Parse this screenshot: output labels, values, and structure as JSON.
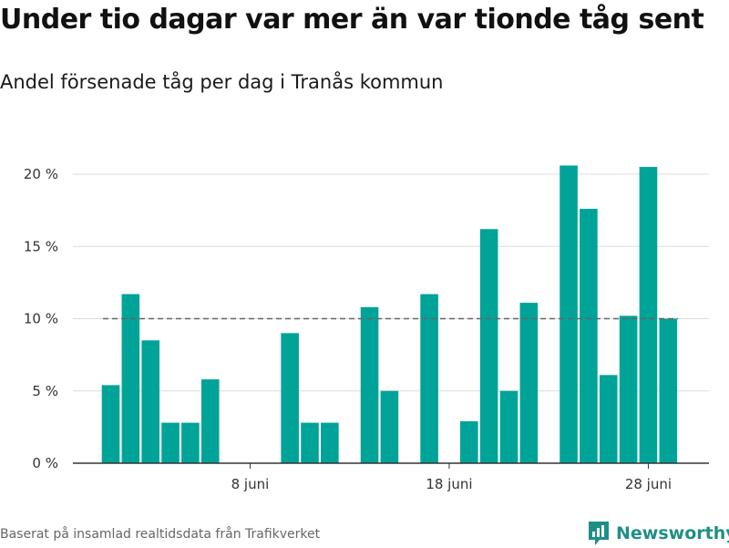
{
  "title": "Under tio dagar var mer än var tionde tåg sent",
  "subtitle": "Andel försenade tåg per dag i Tranås kommun",
  "source": "Baserat på insamlad realtidsdata från Trafikverket",
  "brand": {
    "name": "Newsworthy",
    "icon": "newsworthy-logo-icon"
  },
  "colors": {
    "bar": "#00a398",
    "grid": "#dcdcdc",
    "reference_line": "#666666",
    "brand": "#1f8f85"
  },
  "chart_data": {
    "type": "bar",
    "title": "Under tio dagar var mer än var tionde tåg sent",
    "subtitle": "Andel försenade tåg per dag i Tranås kommun",
    "xlabel": "",
    "ylabel": "",
    "unit": "%",
    "ylim": [
      0,
      22
    ],
    "yticks": [
      0,
      5,
      10,
      15,
      20
    ],
    "ytick_labels": [
      "0 %",
      "5 %",
      "10 %",
      "15 %",
      "20 %"
    ],
    "xtick_labels": [
      {
        "label": "8 juni",
        "day": 8
      },
      {
        "label": "18 juni",
        "day": 18
      },
      {
        "label": "28 juni",
        "day": 28
      }
    ],
    "grid": true,
    "reference_line": 10,
    "days": [
      1,
      2,
      3,
      4,
      5,
      6,
      7,
      8,
      9,
      10,
      11,
      12,
      13,
      14,
      15,
      16,
      17,
      18,
      19,
      20,
      21,
      22,
      23,
      24,
      25,
      26,
      27,
      28,
      29,
      30
    ],
    "values": [
      5.4,
      11.7,
      8.5,
      2.8,
      2.8,
      5.8,
      0,
      0,
      0,
      9.0,
      2.8,
      2.8,
      0,
      10.8,
      5.0,
      0,
      11.7,
      0,
      2.9,
      16.2,
      5.0,
      11.1,
      0,
      20.6,
      17.6,
      6.1,
      10.2,
      20.5,
      10.0,
      0
    ]
  }
}
